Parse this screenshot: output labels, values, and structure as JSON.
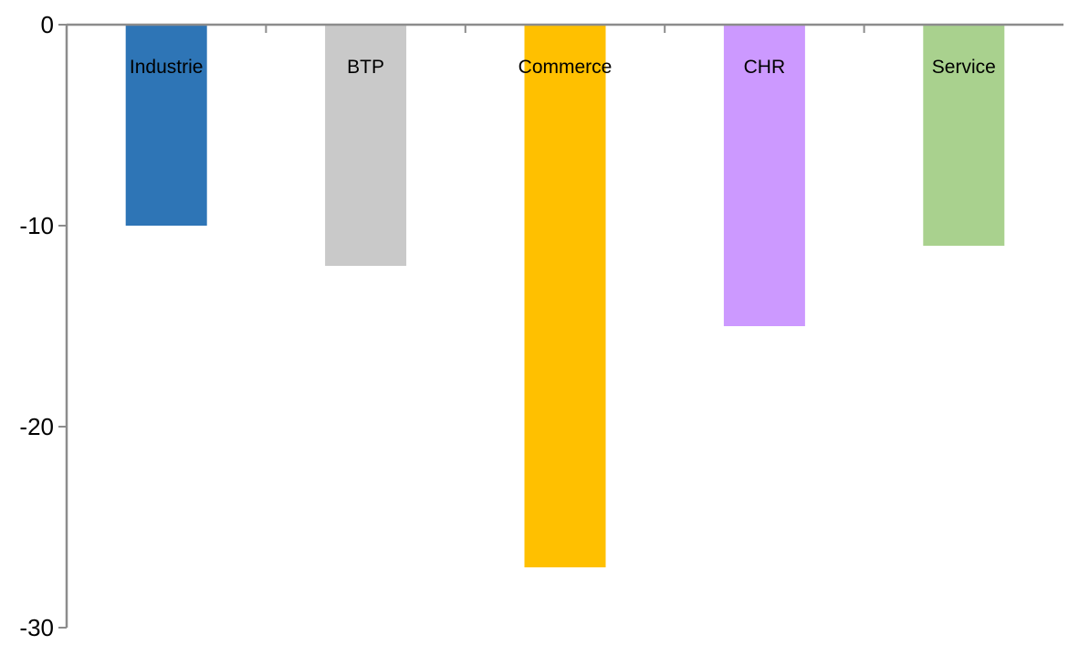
{
  "chart_data": {
    "type": "bar",
    "categories": [
      "Industrie",
      "BTP",
      "Commerce",
      "CHR",
      "Service"
    ],
    "values": [
      -10,
      -12,
      -27,
      -15,
      -11
    ],
    "colors": [
      "#2e75b6",
      "#c9c9c9",
      "#ffc000",
      "#cc99ff",
      "#a9d18e"
    ],
    "ylim": [
      -30,
      0
    ],
    "yticks": [
      "0",
      "-10",
      "-20",
      "-30"
    ],
    "ytick_values": [
      0,
      -10,
      -20,
      -30
    ],
    "category_labels_position": "inside-top",
    "grid": false,
    "legend": "none"
  }
}
